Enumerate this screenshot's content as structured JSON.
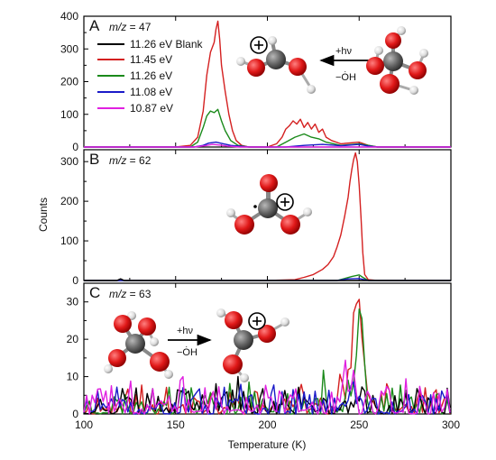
{
  "chart_data": {
    "type": "line",
    "xlabel": "Temperature (K)",
    "ylabel": "Counts",
    "xlim": [
      100,
      300
    ],
    "x_ticks": [
      100,
      150,
      200,
      250,
      300
    ],
    "grid": false,
    "legend_placement": "top-left of panel A",
    "panels": [
      {
        "letter": "A",
        "mz_prefix": "m/z",
        "mz_value": "= 47",
        "ylim": [
          0,
          400
        ],
        "y_ticks": [
          0,
          100,
          200,
          300,
          400
        ],
        "legend": [
          {
            "name": "11.26 eV Blank",
            "color": "#000000"
          },
          {
            "name": "11.45 eV",
            "color": "#d42020"
          },
          {
            "name": "11.26 eV",
            "color": "#1b8a1b"
          },
          {
            "name": "11.08 eV",
            "color": "#1a1ac8"
          },
          {
            "name": "10.87 eV",
            "color": "#e020e0"
          }
        ],
        "annotation": {
          "top": "+hν",
          "bottom": "−ȮH"
        },
        "series": [
          {
            "name": "11.45 eV",
            "color": "#d42020",
            "x": [
              100,
              150,
              158,
              162,
              165,
              167,
              169,
              171,
              172,
              173,
              174,
              175,
              177,
              179,
              181,
              183,
              186,
              190,
              200,
              205,
              208,
              210,
              212,
              214,
              216,
              218,
              220,
              222,
              224,
              226,
              228,
              230,
              232,
              235,
              240,
              250,
              255,
              260,
              270,
              300
            ],
            "y": [
              0,
              0,
              5,
              30,
              110,
              220,
              290,
              320,
              360,
              385,
              330,
              250,
              170,
              100,
              50,
              20,
              5,
              0,
              0,
              10,
              30,
              55,
              65,
              80,
              70,
              85,
              60,
              75,
              55,
              70,
              45,
              55,
              30,
              20,
              10,
              15,
              5,
              0,
              0,
              0
            ]
          },
          {
            "name": "11.26 eV",
            "color": "#1b8a1b",
            "x": [
              100,
              158,
              162,
              165,
              167,
              169,
              171,
              173,
              175,
              177,
              180,
              184,
              190,
              205,
              210,
              215,
              220,
              224,
              228,
              232,
              240,
              250,
              260,
              300
            ],
            "y": [
              0,
              0,
              15,
              60,
              95,
              110,
              105,
              115,
              80,
              50,
              20,
              5,
              0,
              0,
              15,
              30,
              40,
              30,
              25,
              15,
              5,
              10,
              0,
              0
            ]
          },
          {
            "name": "11.08 eV",
            "color": "#1a1ac8",
            "x": [
              100,
              160,
              165,
              168,
              172,
              176,
              180,
              190,
              210,
              220,
              230,
              240,
              250,
              255,
              260,
              300
            ],
            "y": [
              0,
              0,
              5,
              12,
              15,
              10,
              5,
              0,
              0,
              5,
              8,
              4,
              8,
              3,
              0,
              0
            ]
          },
          {
            "name": "10.87 eV",
            "color": "#e020e0",
            "x": [
              100,
              160,
              166,
              170,
              174,
              178,
              185,
              300
            ],
            "y": [
              0,
              0,
              4,
              8,
              6,
              3,
              0,
              0
            ]
          }
        ]
      },
      {
        "letter": "B",
        "mz_prefix": "m/z",
        "mz_value": "= 62",
        "ylim": [
          0,
          330
        ],
        "y_ticks": [
          0,
          100,
          200,
          300
        ],
        "series": [
          {
            "name": "11.45 eV",
            "color": "#d42020",
            "x": [
              100,
              200,
              215,
              220,
              225,
              230,
              233,
              236,
              238,
              240,
              242,
              244,
              245,
              246,
              247,
              248,
              249,
              250,
              251,
              252,
              253,
              255,
              260,
              300
            ],
            "y": [
              0,
              0,
              2,
              8,
              15,
              28,
              40,
              60,
              85,
              115,
              160,
              210,
              250,
              280,
              305,
              322,
              300,
              240,
              160,
              70,
              15,
              2,
              0,
              0
            ]
          },
          {
            "name": "11.26 eV",
            "color": "#1b8a1b",
            "x": [
              100,
              238,
              242,
              246,
              250,
              252,
              255,
              300
            ],
            "y": [
              0,
              0,
              5,
              10,
              14,
              8,
              0,
              0
            ]
          },
          {
            "name": "11.08 eV",
            "color": "#1a1ac8",
            "x": [
              100,
              238,
              244,
              250,
              255,
              300
            ],
            "y": [
              0,
              0,
              4,
              5,
              0,
              0
            ]
          },
          {
            "name": "11.26 eV Blank",
            "color": "#000000",
            "x": [
              100,
              118,
              120,
              122,
              124,
              300
            ],
            "y": [
              0,
              0,
              4,
              0,
              0,
              0
            ]
          }
        ]
      },
      {
        "letter": "C",
        "mz_prefix": "m/z",
        "mz_value": "= 63",
        "ylim": [
          0,
          35
        ],
        "y_ticks": [
          0,
          10,
          20,
          30
        ],
        "annotation": {
          "top": "+hν",
          "bottom": "−ȮH"
        },
        "series": [
          {
            "name": "11.45 eV",
            "color": "#d42020",
            "noise": {
              "amp": 4.5,
              "seed": 11
            },
            "peaks": [
              {
                "x": 249,
                "h": 30,
                "w": 2.6
              },
              {
                "x": 240,
                "h": 8,
                "w": 1.5
              }
            ]
          },
          {
            "name": "11.26 eV",
            "color": "#1b8a1b",
            "noise": {
              "amp": 4.5,
              "seed": 23
            },
            "peaks": [
              {
                "x": 250.5,
                "h": 29,
                "w": 1.8
              },
              {
                "x": 244,
                "h": 9,
                "w": 1.2
              }
            ]
          },
          {
            "name": "11.26 eV Blank",
            "color": "#000000",
            "noise": {
              "amp": 4.5,
              "seed": 37
            },
            "peaks": []
          },
          {
            "name": "11.08 eV",
            "color": "#1a1ac8",
            "noise": {
              "amp": 4.5,
              "seed": 51
            },
            "peaks": [
              {
                "x": 246,
                "h": 6,
                "w": 2
              }
            ]
          },
          {
            "name": "10.87 eV",
            "color": "#e020e0",
            "noise": {
              "amp": 5,
              "seed": 73
            },
            "peaks": [
              {
                "x": 153,
                "h": 9,
                "w": 0.8
              },
              {
                "x": 242,
                "h": 7,
                "w": 2
              }
            ]
          }
        ]
      }
    ]
  }
}
